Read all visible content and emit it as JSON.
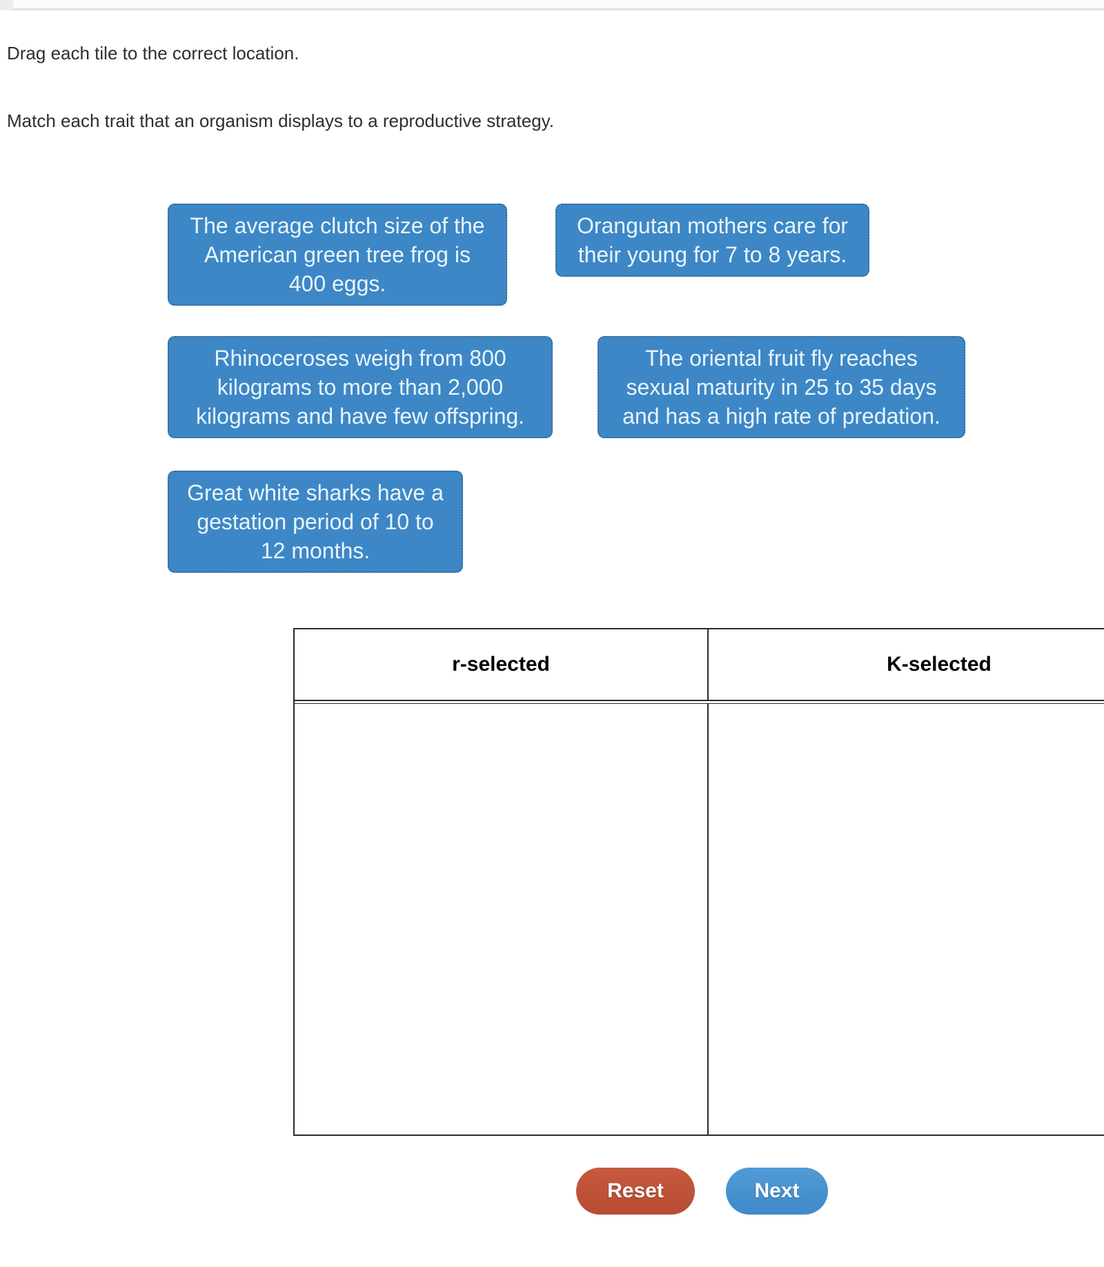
{
  "instructions": {
    "primary": "Drag each tile to the correct location.",
    "secondary": "Match each trait that an organism displays to a reproductive strategy."
  },
  "tiles": [
    {
      "id": "green-tree-frog",
      "text": "The average clutch size of the American green tree frog is 400 eggs.",
      "lines": [
        "The average clutch size of the",
        "American green tree frog is",
        "400 eggs."
      ]
    },
    {
      "id": "orangutan",
      "text": "Orangutan mothers care for their young for 7 to 8 years.",
      "lines": [
        "Orangutan mothers care for",
        "their young for 7 to 8 years."
      ]
    },
    {
      "id": "rhinoceros",
      "text": "Rhinoceroses weigh from 800 kilograms to more than 2,000 kilograms and have few offspring.",
      "lines": [
        "Rhinoceroses weigh from 800",
        "kilograms to more than 2,000",
        "kilograms and have few offspring."
      ]
    },
    {
      "id": "oriental-fruit-fly",
      "text": "The oriental fruit fly reaches sexual maturity in 25 to 35 days and has a high rate of predation.",
      "lines": [
        "The oriental fruit fly reaches",
        "sexual maturity in 25 to 35 days",
        "and has a high rate of predation."
      ]
    },
    {
      "id": "great-white-shark",
      "text": "Great white sharks have a gestation period of 10 to 12 months.",
      "lines": [
        "Great white sharks have a",
        "gestation period of 10 to",
        "12 months."
      ]
    }
  ],
  "match_table": {
    "columns": [
      {
        "header": "r-selected"
      },
      {
        "header": "K-selected"
      }
    ]
  },
  "buttons": {
    "reset": "Reset",
    "next": "Next"
  },
  "colors": {
    "tile_background": "#3d87c7",
    "tile_border": "#3c6787",
    "tile_text": "#e8f5f9",
    "reset_button": "#bf5138",
    "next_button": "#4795d3",
    "table_border": "#2b2b2b",
    "instruction_text": "#2e2e2e"
  }
}
